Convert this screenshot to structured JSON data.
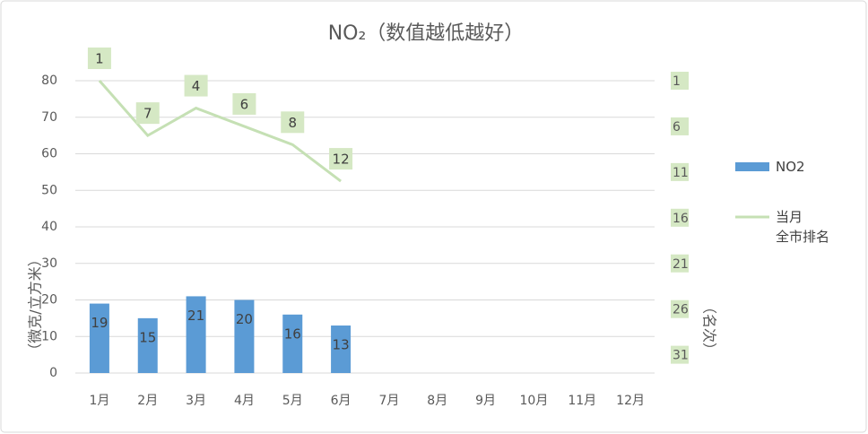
{
  "chart_data": {
    "type": "combo",
    "title": "NO₂（数值越低越好）",
    "y_label": "（微克/立方米）",
    "y2_label": "（名次）",
    "categories": [
      "1月",
      "2月",
      "3月",
      "4月",
      "5月",
      "6月",
      "7月",
      "8月",
      "9月",
      "10月",
      "11月",
      "12月"
    ],
    "series": [
      {
        "name": "NO2",
        "type": "bar",
        "color": "#5b9bd5",
        "values": [
          19,
          15,
          21,
          20,
          16,
          13,
          null,
          null,
          null,
          null,
          null,
          null
        ]
      },
      {
        "name": "当月\n全市排名",
        "type": "line",
        "axis": "y2",
        "color": "#c5e0b4",
        "values": [
          1,
          7,
          4,
          6,
          8,
          12,
          null,
          null,
          null,
          null,
          null,
          null
        ]
      }
    ],
    "ylim": [
      0,
      80
    ],
    "yticks": [
      0,
      10,
      20,
      30,
      40,
      50,
      60,
      70,
      80
    ],
    "y2lim": [
      33,
      1
    ],
    "y2ticks": [
      1,
      6,
      11,
      16,
      21,
      26,
      31
    ],
    "grid": true,
    "legend": "right"
  }
}
